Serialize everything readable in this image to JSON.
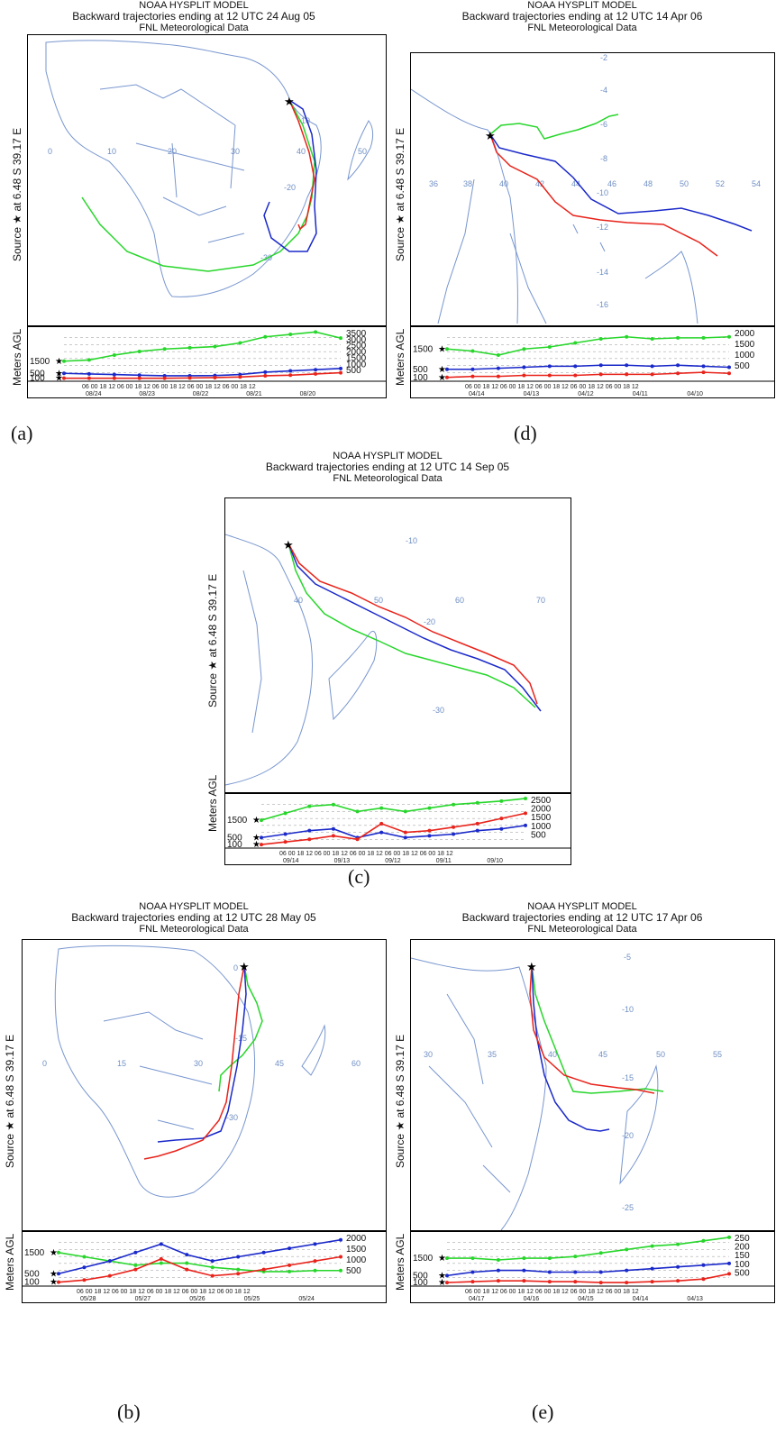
{
  "colors": {
    "red": "#e8231b",
    "blue": "#1a29c9",
    "green": "#27d62b",
    "coast": "#7896cf",
    "grid": "#aaaaaa"
  },
  "common": {
    "model": "NOAA HYSPLIT MODEL",
    "met": "FNL  Meteorological Data",
    "source_label": "Source ★  at    6.48 S   39.17 E",
    "alt_label": "Meters AGL"
  },
  "panels": [
    {
      "id": "a",
      "caption": "(a)",
      "title": "Backward trajectories ending at 12 UTC 24 Aug 05",
      "lon_labels": [
        "0",
        "10",
        "20",
        "30",
        "40",
        "50"
      ],
      "lat_labels": [
        "-10",
        "-20",
        "-30"
      ],
      "alt_ticks_right": [
        "3500",
        "3000",
        "2500",
        "2000",
        "1500",
        "1000",
        "500"
      ],
      "alt_ticks_left": [
        "1500",
        "500",
        "100"
      ],
      "time_hours": "06 00 18 12 06 00 18 12 06 00 18 12 06 00 18 12 06 00 18 12",
      "dates": [
        "08/24",
        "08/23",
        "08/22",
        "08/21",
        "08/20"
      ],
      "alt_ymax": 4000,
      "altitudes": {
        "green": [
          1500,
          1600,
          2000,
          2300,
          2500,
          2600,
          2700,
          3000,
          3500,
          3700,
          3900,
          3400
        ],
        "blue": [
          500,
          450,
          400,
          350,
          300,
          300,
          320,
          400,
          600,
          700,
          800,
          900
        ],
        "red": [
          100,
          100,
          100,
          100,
          100,
          120,
          150,
          200,
          300,
          350,
          450,
          550
        ]
      }
    },
    {
      "id": "d",
      "caption": "(d)",
      "title": "Backward trajectories ending at 12 UTC 14 Apr 06",
      "lon_labels": [
        "36",
        "38",
        "40",
        "42",
        "44",
        "46",
        "48",
        "50",
        "52",
        "54"
      ],
      "lat_labels": [
        "-2",
        "-4",
        "-6",
        "-8",
        "-10",
        "-12",
        "-14",
        "-16"
      ],
      "alt_ticks_right": [
        "2000",
        "1500",
        "1000",
        "500"
      ],
      "alt_ticks_left": [
        "1500",
        "500",
        "100"
      ],
      "time_hours": "06 00 18 12 06 00 18 12 06 00 18 12 06 00 18 12 06 00 18 12",
      "dates": [
        "04/14",
        "04/13",
        "04/12",
        "04/11",
        "04/10"
      ],
      "alt_ymax": 2400,
      "altitudes": {
        "green": [
          1500,
          1400,
          1200,
          1500,
          1600,
          1800,
          2000,
          2100,
          2000,
          2050,
          2050,
          2100
        ],
        "blue": [
          500,
          500,
          550,
          600,
          650,
          650,
          700,
          700,
          650,
          700,
          650,
          600
        ],
        "red": [
          100,
          150,
          150,
          200,
          200,
          200,
          250,
          250,
          250,
          300,
          350,
          300
        ]
      }
    },
    {
      "id": "c",
      "caption": "(c)",
      "title": "Backward trajectories ending at 12 UTC 14 Sep 05",
      "lon_labels": [
        "40",
        "50",
        "60",
        "70"
      ],
      "lat_labels": [
        "-10",
        "-20",
        "-30"
      ],
      "alt_ticks_right": [
        "2500",
        "2000",
        "1500",
        "1000",
        "500"
      ],
      "alt_ticks_left": [
        "1500",
        "500",
        "100"
      ],
      "time_hours": "06 00 18 12 06 00 18 12 06 00 18 12 06 00 18 12 06 00 18 12",
      "dates": [
        "09/14",
        "09/13",
        "09/12",
        "09/11",
        "09/10"
      ],
      "alt_ymax": 2800,
      "altitudes": {
        "green": [
          1500,
          1900,
          2300,
          2400,
          2000,
          2200,
          2000,
          2200,
          2400,
          2500,
          2600,
          2750
        ],
        "blue": [
          500,
          700,
          900,
          1000,
          500,
          800,
          500,
          600,
          700,
          900,
          1000,
          1200
        ],
        "red": [
          100,
          250,
          400,
          600,
          400,
          1300,
          800,
          900,
          1100,
          1300,
          1600,
          1900
        ]
      }
    },
    {
      "id": "b",
      "caption": "(b)",
      "title": "Backward trajectories ending at 12 UTC 28 May 05",
      "lon_labels": [
        "0",
        "15",
        "30",
        "45",
        "60"
      ],
      "lat_labels": [
        "0",
        "-15",
        "-30"
      ],
      "alt_ticks_right": [
        "2000",
        "1500",
        "1000",
        "500"
      ],
      "alt_ticks_left": [
        "1500",
        "500",
        "100"
      ],
      "time_hours": "06 00 18 12 06 00 18 12 06 00 18 12 06 00 18 12 06 00 18 12",
      "dates": [
        "05/28",
        "05/27",
        "05/26",
        "05/25",
        "05/24"
      ],
      "alt_ymax": 2300,
      "altitudes": {
        "green": [
          1500,
          1300,
          1100,
          900,
          1000,
          1000,
          800,
          700,
          600,
          600,
          650,
          650
        ],
        "blue": [
          500,
          800,
          1100,
          1500,
          1900,
          1400,
          1100,
          1300,
          1500,
          1700,
          1900,
          2100
        ],
        "red": [
          100,
          200,
          400,
          700,
          1200,
          700,
          400,
          500,
          700,
          900,
          1100,
          1300
        ]
      }
    },
    {
      "id": "e",
      "caption": "(e)",
      "title": "Backward trajectories ending at 12 UTC 17 Apr 06",
      "lon_labels": [
        "30",
        "35",
        "40",
        "45",
        "50",
        "55"
      ],
      "lat_labels": [
        "-5",
        "-10",
        "-15",
        "-20",
        "-25"
      ],
      "alt_ticks_right": [
        "250",
        "200",
        "150",
        "100",
        "500"
      ],
      "alt_ticks_left": [
        "1500",
        "500",
        "100"
      ],
      "time_hours": "06 00 18 12 06 00 18 12 06 00 18 12 06 00 18 12 06 00 18 12",
      "dates": [
        "04/17",
        "04/16",
        "04/15",
        "04/14",
        "04/13"
      ],
      "alt_ymax": 2800,
      "altitudes": {
        "green": [
          1500,
          1500,
          1400,
          1500,
          1500,
          1600,
          1800,
          2000,
          2200,
          2300,
          2500,
          2700
        ],
        "blue": [
          500,
          700,
          800,
          800,
          700,
          700,
          700,
          800,
          900,
          1000,
          1100,
          1200
        ],
        "red": [
          100,
          150,
          200,
          200,
          150,
          150,
          100,
          100,
          150,
          200,
          300,
          600
        ]
      }
    }
  ]
}
